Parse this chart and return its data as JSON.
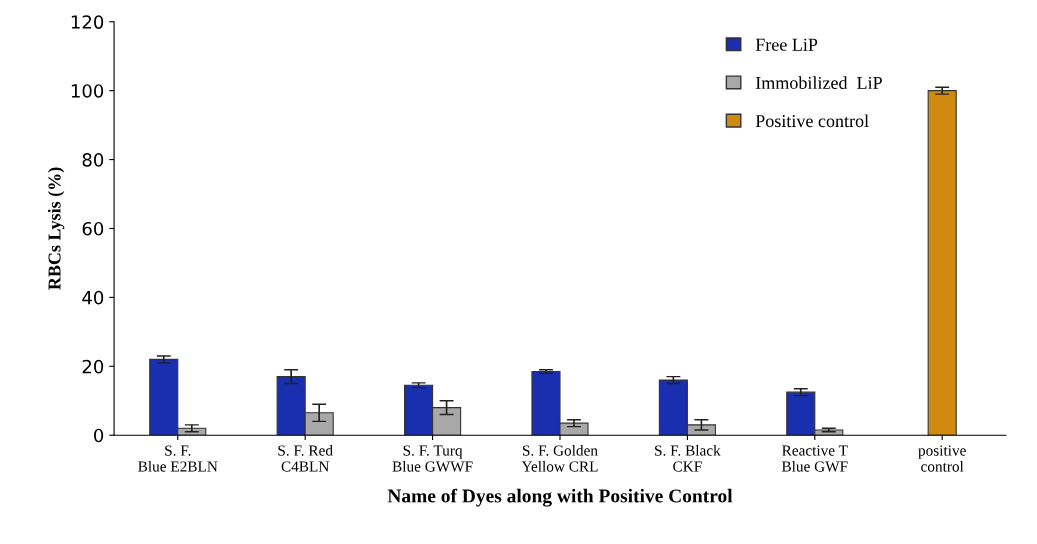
{
  "chart_data": {
    "type": "bar",
    "categories": [
      "S. F.\nBlue E2BLN",
      "S. F. Red\nC4BLN",
      "S. F. Turq\nBlue GWWF",
      "S. F. Golden\nYellow CRL",
      "S. F. Black\nCKF",
      "Reactive T\nBlue GWF",
      "positive\ncontrol"
    ],
    "series": [
      {
        "name": "Free LiP",
        "color": "#1a2fb0",
        "values": [
          22,
          17,
          14.5,
          18.5,
          16,
          12.5,
          null
        ],
        "errors": [
          1,
          2,
          0.7,
          0.5,
          1,
          1,
          null
        ]
      },
      {
        "name": "Immobilized  LiP",
        "color": "#a8a8a8",
        "values": [
          2,
          6.5,
          8,
          3.5,
          3,
          1.5,
          null
        ],
        "errors": [
          1,
          2.5,
          2,
          1,
          1.5,
          0.5,
          null
        ]
      },
      {
        "name": "Positive control",
        "color": "#d08a10",
        "values": [
          null,
          null,
          null,
          null,
          null,
          null,
          100
        ],
        "errors": [
          null,
          null,
          null,
          null,
          null,
          null,
          1
        ]
      }
    ],
    "xlabel": "Name of Dyes along with Positive Control",
    "ylabel": "RBCs Lysis (%)",
    "ylim": [
      0,
      120
    ],
    "yticks": [
      0,
      20,
      40,
      60,
      80,
      100,
      120
    ],
    "grid": false,
    "legend": "top right"
  }
}
